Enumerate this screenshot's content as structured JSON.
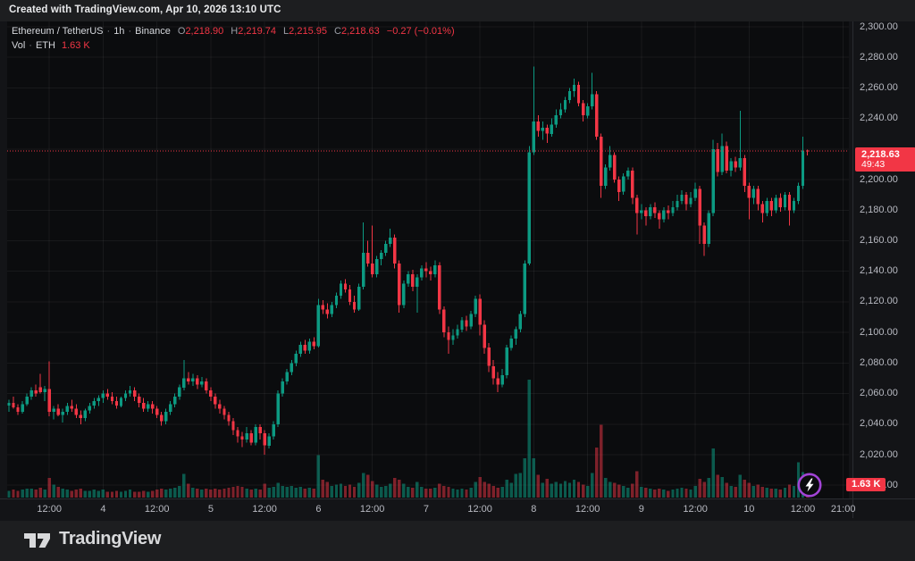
{
  "header": {
    "created_text": "Created with TradingView.com, Apr 10, 2026 13:10 UTC"
  },
  "legend": {
    "symbol": "Ethereum / TetherUS",
    "sep": "·",
    "interval": "1h",
    "exchange": "Binance",
    "ohlc": [
      {
        "label": "O",
        "value": "2,218.90"
      },
      {
        "label": "H",
        "value": "2,219.74"
      },
      {
        "label": "L",
        "value": "2,215.95"
      },
      {
        "label": "C",
        "value": "2,218.63"
      }
    ],
    "change": "−0.27 (−0.01%)",
    "vol_label": "Vol",
    "vol_symbol": "ETH",
    "vol_value": "1.63 K"
  },
  "price_axis": {
    "labels": [
      {
        "t": "2,300.00",
        "p": 2300
      },
      {
        "t": "2,280.00",
        "p": 2280
      },
      {
        "t": "2,260.00",
        "p": 2260
      },
      {
        "t": "2,240.00",
        "p": 2240
      },
      {
        "t": "2,200.00",
        "p": 2200
      },
      {
        "t": "2,180.00",
        "p": 2180
      },
      {
        "t": "2,160.00",
        "p": 2160
      },
      {
        "t": "2,140.00",
        "p": 2140
      },
      {
        "t": "2,120.00",
        "p": 2120
      },
      {
        "t": "2,100.00",
        "p": 2100
      },
      {
        "t": "2,080.00",
        "p": 2080
      },
      {
        "t": "2,060.00",
        "p": 2060
      },
      {
        "t": "2,040.00",
        "p": 2040
      },
      {
        "t": "2,020.00",
        "p": 2020
      },
      {
        "t": "2,000.00",
        "p": 2000
      }
    ],
    "badge": {
      "price": "2,218.63",
      "countdown": "49:43"
    },
    "vol_badge": "1.63 K"
  },
  "time_axis": {
    "ticks": [
      {
        "i": 9,
        "label": "12:00"
      },
      {
        "i": 21,
        "label": "4"
      },
      {
        "i": 33,
        "label": "12:00"
      },
      {
        "i": 45,
        "label": "5"
      },
      {
        "i": 57,
        "label": "12:00"
      },
      {
        "i": 69,
        "label": "6"
      },
      {
        "i": 81,
        "label": "12:00"
      },
      {
        "i": 93,
        "label": "7"
      },
      {
        "i": 105,
        "label": "12:00"
      },
      {
        "i": 117,
        "label": "8"
      },
      {
        "i": 129,
        "label": "12:00"
      },
      {
        "i": 141,
        "label": "9"
      },
      {
        "i": 153,
        "label": "12:00"
      },
      {
        "i": 165,
        "label": "10"
      },
      {
        "i": 177,
        "label": "12:00"
      },
      {
        "i": 186,
        "label": "21:00"
      }
    ]
  },
  "footer": {
    "brand": "TradingView"
  },
  "colors": {
    "up": "#0c9a82",
    "down": "#f23645",
    "vol_up": "rgba(12,154,130,0.55)",
    "vol_down": "rgba(242,54,69,0.50)",
    "plot_bg": "#0b0c0e",
    "grid": "rgba(255,255,255,0.055)",
    "frame": "#2a2c31",
    "accent": "#f23645",
    "purple": "#a244d6"
  },
  "chart_data": {
    "type": "candlestick+volume",
    "title": "Ethereum / TetherUS · 1h · Binance",
    "timeframe": "1h",
    "last_price": 2218.63,
    "price_range": [
      2000,
      2300
    ],
    "grid_step": 20,
    "volume_unit": "K ETH (estimated)",
    "last_volume": 1.63,
    "candles": [
      [
        2052,
        2056,
        2048,
        2054,
        0.7
      ],
      [
        2054,
        2058,
        2050,
        2051,
        0.8
      ],
      [
        2051,
        2053,
        2046,
        2048,
        0.7
      ],
      [
        2048,
        2055,
        2047,
        2053,
        0.8
      ],
      [
        2053,
        2060,
        2052,
        2058,
        0.9
      ],
      [
        2058,
        2064,
        2056,
        2062,
        0.9
      ],
      [
        2062,
        2066,
        2058,
        2060,
        0.8
      ],
      [
        2064,
        2073,
        2060,
        2061,
        1.0
      ],
      [
        2061,
        2065,
        2055,
        2063,
        0.8
      ],
      [
        2063,
        2081,
        2045,
        2048,
        2.0
      ],
      [
        2048,
        2052,
        2043,
        2050,
        1.3
      ],
      [
        2050,
        2053,
        2045,
        2046,
        1.1
      ],
      [
        2046,
        2050,
        2041,
        2048,
        0.9
      ],
      [
        2048,
        2054,
        2046,
        2052,
        0.8
      ],
      [
        2052,
        2056,
        2048,
        2050,
        0.7
      ],
      [
        2050,
        2053,
        2044,
        2046,
        0.8
      ],
      [
        2046,
        2049,
        2040,
        2044,
        0.9
      ],
      [
        2044,
        2050,
        2042,
        2049,
        0.7
      ],
      [
        2049,
        2054,
        2047,
        2052,
        0.7
      ],
      [
        2052,
        2057,
        2050,
        2055,
        0.8
      ],
      [
        2055,
        2059,
        2052,
        2057,
        0.7
      ],
      [
        2057,
        2062,
        2054,
        2060,
        0.8
      ],
      [
        2060,
        2063,
        2056,
        2058,
        0.6
      ],
      [
        2058,
        2061,
        2053,
        2055,
        0.6
      ],
      [
        2055,
        2058,
        2050,
        2052,
        0.7
      ],
      [
        2052,
        2058,
        2051,
        2057,
        0.6
      ],
      [
        2057,
        2062,
        2055,
        2060,
        0.7
      ],
      [
        2060,
        2065,
        2058,
        2062,
        0.8
      ],
      [
        2062,
        2064,
        2055,
        2058,
        0.6
      ],
      [
        2058,
        2060,
        2051,
        2054,
        0.6
      ],
      [
        2054,
        2057,
        2048,
        2050,
        0.7
      ],
      [
        2050,
        2055,
        2048,
        2053,
        0.6
      ],
      [
        2053,
        2055,
        2047,
        2050,
        0.7
      ],
      [
        2050,
        2052,
        2044,
        2046,
        0.8
      ],
      [
        2046,
        2048,
        2039,
        2042,
        0.9
      ],
      [
        2042,
        2050,
        2040,
        2048,
        0.8
      ],
      [
        2048,
        2055,
        2046,
        2053,
        0.9
      ],
      [
        2053,
        2060,
        2051,
        2058,
        1.0
      ],
      [
        2058,
        2066,
        2056,
        2064,
        1.2
      ],
      [
        2064,
        2082,
        2062,
        2070,
        2.4
      ],
      [
        2070,
        2074,
        2066,
        2068,
        1.4
      ],
      [
        2068,
        2073,
        2065,
        2070,
        1.0
      ],
      [
        2070,
        2072,
        2063,
        2066,
        0.9
      ],
      [
        2066,
        2071,
        2064,
        2068,
        0.8
      ],
      [
        2068,
        2070,
        2060,
        2062,
        0.9
      ],
      [
        2062,
        2064,
        2055,
        2058,
        0.8
      ],
      [
        2058,
        2060,
        2050,
        2053,
        0.9
      ],
      [
        2053,
        2056,
        2047,
        2050,
        0.8
      ],
      [
        2050,
        2052,
        2043,
        2046,
        0.9
      ],
      [
        2046,
        2048,
        2039,
        2042,
        1.0
      ],
      [
        2042,
        2044,
        2033,
        2036,
        1.1
      ],
      [
        2036,
        2038,
        2028,
        2032,
        1.2
      ],
      [
        2032,
        2035,
        2025,
        2030,
        1.1
      ],
      [
        2030,
        2038,
        2028,
        2034,
        0.9
      ],
      [
        2034,
        2036,
        2026,
        2028,
        0.8
      ],
      [
        2028,
        2040,
        2026,
        2038,
        0.9
      ],
      [
        2038,
        2040,
        2030,
        2034,
        0.8
      ],
      [
        2034,
        2036,
        2020,
        2026,
        1.4
      ],
      [
        2026,
        2034,
        2024,
        2032,
        1.0
      ],
      [
        2032,
        2042,
        2030,
        2040,
        1.1
      ],
      [
        2040,
        2062,
        2038,
        2060,
        1.5
      ],
      [
        2060,
        2070,
        2058,
        2068,
        1.2
      ],
      [
        2068,
        2076,
        2066,
        2074,
        1.1
      ],
      [
        2074,
        2082,
        2072,
        2080,
        1.2
      ],
      [
        2080,
        2088,
        2078,
        2086,
        1.0
      ],
      [
        2086,
        2094,
        2084,
        2092,
        1.1
      ],
      [
        2092,
        2095,
        2086,
        2088,
        0.9
      ],
      [
        2088,
        2096,
        2086,
        2094,
        1.0
      ],
      [
        2094,
        2097,
        2089,
        2091,
        0.9
      ],
      [
        2091,
        2122,
        2090,
        2118,
        4.3
      ],
      [
        2118,
        2121,
        2112,
        2115,
        1.8
      ],
      [
        2115,
        2119,
        2109,
        2112,
        1.6
      ],
      [
        2112,
        2120,
        2110,
        2118,
        1.2
      ],
      [
        2118,
        2126,
        2116,
        2124,
        1.3
      ],
      [
        2124,
        2134,
        2122,
        2132,
        1.4
      ],
      [
        2132,
        2135,
        2126,
        2128,
        1.2
      ],
      [
        2128,
        2131,
        2118,
        2120,
        1.3
      ],
      [
        2120,
        2124,
        2113,
        2115,
        1.1
      ],
      [
        2115,
        2132,
        2114,
        2130,
        1.5
      ],
      [
        2130,
        2172,
        2128,
        2152,
        2.5
      ],
      [
        2152,
        2160,
        2143,
        2145,
        2.3
      ],
      [
        2145,
        2170,
        2136,
        2138,
        1.7
      ],
      [
        2138,
        2150,
        2136,
        2148,
        1.3
      ],
      [
        2148,
        2154,
        2144,
        2152,
        1.1
      ],
      [
        2152,
        2160,
        2150,
        2158,
        1.2
      ],
      [
        2158,
        2168,
        2156,
        2162,
        1.4
      ],
      [
        2162,
        2164,
        2142,
        2145,
        2.0
      ],
      [
        2145,
        2147,
        2113,
        2118,
        1.8
      ],
      [
        2118,
        2134,
        2116,
        2132,
        1.4
      ],
      [
        2132,
        2140,
        2130,
        2138,
        1.1
      ],
      [
        2138,
        2141,
        2127,
        2130,
        1.0
      ],
      [
        2130,
        2138,
        2113,
        2136,
        1.6
      ],
      [
        2136,
        2144,
        2134,
        2142,
        1.1
      ],
      [
        2142,
        2146,
        2136,
        2140,
        0.9
      ],
      [
        2140,
        2143,
        2134,
        2138,
        0.9
      ],
      [
        2138,
        2147,
        2136,
        2144,
        1.0
      ],
      [
        2144,
        2146,
        2112,
        2115,
        1.4
      ],
      [
        2115,
        2117,
        2097,
        2100,
        1.2
      ],
      [
        2100,
        2104,
        2086,
        2095,
        1.1
      ],
      [
        2095,
        2102,
        2092,
        2098,
        0.9
      ],
      [
        2098,
        2105,
        2096,
        2102,
        0.8
      ],
      [
        2102,
        2110,
        2100,
        2108,
        0.9
      ],
      [
        2108,
        2111,
        2101,
        2104,
        0.8
      ],
      [
        2104,
        2114,
        2102,
        2112,
        1.0
      ],
      [
        2112,
        2124,
        2110,
        2122,
        1.6
      ],
      [
        2122,
        2125,
        2098,
        2105,
        2.1
      ],
      [
        2105,
        2108,
        2086,
        2090,
        1.6
      ],
      [
        2090,
        2093,
        2074,
        2078,
        1.4
      ],
      [
        2078,
        2082,
        2066,
        2070,
        1.2
      ],
      [
        2070,
        2074,
        2061,
        2066,
        1.0
      ],
      [
        2066,
        2076,
        2064,
        2072,
        1.1
      ],
      [
        2072,
        2092,
        2070,
        2090,
        1.8
      ],
      [
        2090,
        2098,
        2088,
        2096,
        1.5
      ],
      [
        2096,
        2104,
        2092,
        2102,
        2.4
      ],
      [
        2102,
        2114,
        2100,
        2112,
        2.5
      ],
      [
        2112,
        2147,
        2110,
        2145,
        4.0
      ],
      [
        2145,
        2222,
        2144,
        2218,
        12.0
      ],
      [
        2218,
        2274,
        2216,
        2238,
        4.0
      ],
      [
        2238,
        2242,
        2228,
        2232,
        2.3
      ],
      [
        2232,
        2238,
        2226,
        2234,
        1.5
      ],
      [
        2234,
        2236,
        2224,
        2230,
        1.9
      ],
      [
        2230,
        2240,
        2228,
        2236,
        1.4
      ],
      [
        2236,
        2246,
        2234,
        2242,
        1.6
      ],
      [
        2242,
        2250,
        2240,
        2246,
        1.4
      ],
      [
        2246,
        2254,
        2244,
        2252,
        1.7
      ],
      [
        2252,
        2260,
        2250,
        2258,
        1.5
      ],
      [
        2258,
        2266,
        2254,
        2262,
        1.8
      ],
      [
        2262,
        2264,
        2248,
        2250,
        1.6
      ],
      [
        2250,
        2252,
        2238,
        2242,
        1.3
      ],
      [
        2242,
        2250,
        2240,
        2248,
        1.2
      ],
      [
        2248,
        2270,
        2246,
        2256,
        2.5
      ],
      [
        2256,
        2258,
        2226,
        2228,
        5.1
      ],
      [
        2228,
        2230,
        2188,
        2196,
        7.4
      ],
      [
        2196,
        2210,
        2194,
        2208,
        2.0
      ],
      [
        2208,
        2222,
        2206,
        2216,
        1.6
      ],
      [
        2216,
        2218,
        2198,
        2200,
        1.5
      ],
      [
        2200,
        2202,
        2186,
        2192,
        1.3
      ],
      [
        2192,
        2204,
        2190,
        2202,
        1.2
      ],
      [
        2202,
        2208,
        2200,
        2206,
        1.0
      ],
      [
        2206,
        2208,
        2184,
        2188,
        1.4
      ],
      [
        2188,
        2190,
        2164,
        2178,
        2.7
      ],
      [
        2178,
        2184,
        2174,
        2180,
        1.1
      ],
      [
        2180,
        2182,
        2170,
        2176,
        1.0
      ],
      [
        2176,
        2184,
        2174,
        2182,
        0.9
      ],
      [
        2182,
        2185,
        2175,
        2178,
        0.8
      ],
      [
        2178,
        2180,
        2168,
        2174,
        0.9
      ],
      [
        2174,
        2182,
        2172,
        2180,
        0.8
      ],
      [
        2180,
        2183,
        2174,
        2178,
        0.7
      ],
      [
        2178,
        2186,
        2176,
        2182,
        0.8
      ],
      [
        2182,
        2190,
        2180,
        2186,
        0.9
      ],
      [
        2186,
        2193,
        2184,
        2190,
        1.0
      ],
      [
        2190,
        2192,
        2180,
        2184,
        0.9
      ],
      [
        2184,
        2192,
        2182,
        2188,
        0.8
      ],
      [
        2188,
        2198,
        2186,
        2194,
        1.2
      ],
      [
        2194,
        2196,
        2158,
        2170,
        1.9
      ],
      [
        2170,
        2172,
        2150,
        2158,
        1.6
      ],
      [
        2158,
        2180,
        2156,
        2178,
        2.0
      ],
      [
        2178,
        2226,
        2176,
        2220,
        5.0
      ],
      [
        2220,
        2224,
        2202,
        2205,
        2.3
      ],
      [
        2205,
        2230,
        2203,
        2222,
        2.1
      ],
      [
        2222,
        2225,
        2204,
        2206,
        1.5
      ],
      [
        2206,
        2214,
        2202,
        2212,
        1.2
      ],
      [
        2212,
        2215,
        2205,
        2208,
        1.1
      ],
      [
        2208,
        2245,
        2206,
        2214,
        2.3
      ],
      [
        2214,
        2216,
        2192,
        2196,
        1.8
      ],
      [
        2196,
        2198,
        2174,
        2188,
        1.5
      ],
      [
        2188,
        2196,
        2184,
        2194,
        1.2
      ],
      [
        2194,
        2196,
        2180,
        2184,
        1.3
      ],
      [
        2184,
        2186,
        2172,
        2178,
        1.1
      ],
      [
        2178,
        2188,
        2176,
        2186,
        1.0
      ],
      [
        2186,
        2188,
        2176,
        2180,
        0.9
      ],
      [
        2180,
        2190,
        2178,
        2188,
        0.9
      ],
      [
        2188,
        2191,
        2179,
        2182,
        0.8
      ],
      [
        2182,
        2192,
        2180,
        2190,
        1.0
      ],
      [
        2190,
        2192,
        2170,
        2180,
        1.3
      ],
      [
        2180,
        2188,
        2178,
        2186,
        1.2
      ],
      [
        2186,
        2198,
        2184,
        2196,
        3.6
      ],
      [
        2196,
        2228,
        2194,
        2219,
        2.6
      ],
      [
        2218.9,
        2219.74,
        2215.95,
        2218.63,
        1.63
      ]
    ]
  }
}
